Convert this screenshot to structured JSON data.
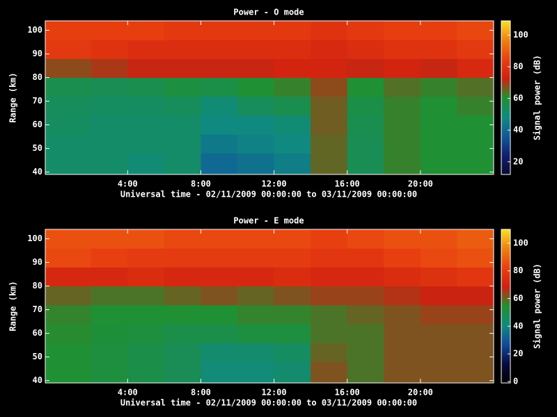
{
  "chart_data": [
    {
      "type": "heatmap",
      "title": "Power - O mode",
      "x_label": "Universal time - 02/11/2009 00:00:00 to 03/11/2009 00:00:00",
      "y_label": "Range (km)",
      "colorbar_label": "Signal power (dB)",
      "xlim": [
        -0.5,
        24
      ],
      "xticks": [
        {
          "value": 4,
          "label": "4:00"
        },
        {
          "value": 8,
          "label": "8:00"
        },
        {
          "value": 12,
          "label": "12:00"
        },
        {
          "value": 16,
          "label": "16:00"
        },
        {
          "value": 20,
          "label": "20:00"
        }
      ],
      "ylim": [
        39,
        104
      ],
      "yticks": [
        40,
        50,
        60,
        70,
        80,
        90,
        100
      ],
      "zlim": [
        12,
        109
      ],
      "zticks": [
        20,
        40,
        60,
        80,
        100
      ],
      "colorscale": [
        "#0a0a30",
        "#102070",
        "#105a9a",
        "#108a80",
        "#209030",
        "#d02010",
        "#e84010",
        "#f08010",
        "#f8e020"
      ],
      "xbins": [
        -0.5,
        2,
        4,
        6,
        8,
        10,
        12,
        14,
        16,
        18,
        20,
        22,
        24
      ],
      "ybins": [
        39,
        48,
        56,
        64,
        72,
        80,
        88,
        96,
        104
      ],
      "values": [
        [
          52,
          52,
          50,
          52,
          40,
          42,
          45,
          65,
          55,
          62,
          60,
          60
        ],
        [
          52,
          52,
          52,
          52,
          44,
          46,
          48,
          65,
          55,
          62,
          60,
          60
        ],
        [
          53,
          52,
          52,
          52,
          48,
          48,
          50,
          66,
          56,
          62,
          60,
          60
        ],
        [
          54,
          53,
          53,
          54,
          50,
          54,
          56,
          66,
          57,
          62,
          60,
          62
        ],
        [
          56,
          55,
          56,
          58,
          57,
          60,
          62,
          68,
          60,
          64,
          62,
          64
        ],
        [
          68,
          70,
          72,
          72,
          72,
          72,
          74,
          74,
          72,
          74,
          72,
          76
        ],
        [
          82,
          80,
          78,
          78,
          78,
          78,
          78,
          76,
          78,
          80,
          80,
          82
        ],
        [
          84,
          84,
          84,
          82,
          82,
          82,
          82,
          80,
          82,
          84,
          84,
          86
        ]
      ]
    },
    {
      "type": "heatmap",
      "title": "Power - E mode",
      "x_label": "Universal time - 02/11/2009 00:00:00 to 03/11/2009 00:00:00",
      "y_label": "Range (km)",
      "colorbar_label": "Signal power (dB)",
      "xlim": [
        -0.5,
        24
      ],
      "xticks": [
        {
          "value": 4,
          "label": "4:00"
        },
        {
          "value": 8,
          "label": "8:00"
        },
        {
          "value": 12,
          "label": "12:00"
        },
        {
          "value": 16,
          "label": "16:00"
        },
        {
          "value": 20,
          "label": "20:00"
        }
      ],
      "ylim": [
        39,
        104
      ],
      "yticks": [
        40,
        50,
        60,
        70,
        80,
        90,
        100
      ],
      "zlim": [
        -1,
        110
      ],
      "zticks": [
        0,
        20,
        40,
        60,
        80,
        100
      ],
      "colorscale": [
        "#000000",
        "#0a0a40",
        "#104a9a",
        "#108a80",
        "#209030",
        "#d02010",
        "#e84010",
        "#f08010",
        "#f8e020"
      ],
      "xbins": [
        -0.5,
        2,
        4,
        6,
        8,
        10,
        12,
        14,
        16,
        18,
        20,
        22,
        24
      ],
      "ybins": [
        39,
        48,
        56,
        64,
        72,
        80,
        88,
        96,
        104
      ],
      "values": [
        [
          54,
          52,
          50,
          48,
          42,
          42,
          44,
          62,
          58,
          62,
          62,
          62
        ],
        [
          54,
          52,
          50,
          48,
          44,
          44,
          46,
          60,
          58,
          62,
          62,
          62
        ],
        [
          55,
          53,
          52,
          50,
          50,
          52,
          52,
          58,
          58,
          62,
          62,
          62
        ],
        [
          56,
          54,
          54,
          54,
          54,
          56,
          56,
          58,
          60,
          62,
          64,
          64
        ],
        [
          60,
          58,
          58,
          60,
          62,
          60,
          62,
          64,
          64,
          66,
          68,
          68
        ],
        [
          72,
          72,
          74,
          72,
          72,
          72,
          74,
          72,
          72,
          74,
          76,
          78
        ],
        [
          84,
          82,
          80,
          80,
          80,
          80,
          80,
          78,
          78,
          82,
          84,
          86
        ],
        [
          86,
          86,
          86,
          84,
          84,
          84,
          84,
          82,
          84,
          86,
          86,
          88
        ]
      ]
    }
  ]
}
